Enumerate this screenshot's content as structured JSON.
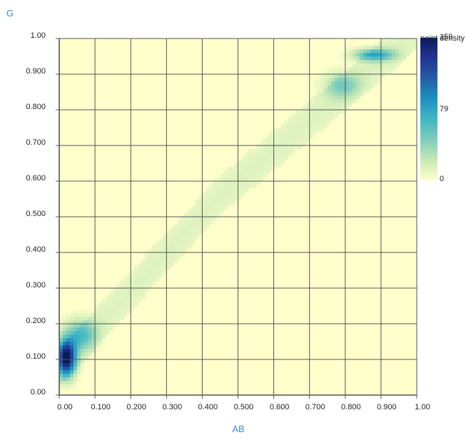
{
  "chart_data": {
    "type": "heatmap",
    "title": "",
    "xlabel": "AB",
    "ylabel": "G",
    "xlim": [
      0,
      1
    ],
    "ylim": [
      0,
      1
    ],
    "grid": true,
    "x_ticks": [
      "0.00",
      "0.100",
      "0.200",
      "0.300",
      "0.400",
      "0.500",
      "0.600",
      "0.700",
      "0.800",
      "0.900",
      "1.00"
    ],
    "y_ticks": [
      "0.00",
      "0.100",
      "0.200",
      "0.300",
      "0.400",
      "0.500",
      "0.600",
      "0.700",
      "0.800",
      "0.900",
      "1.00"
    ],
    "colorbar": {
      "title": "point density",
      "min": 0,
      "mid": 79,
      "max": 159,
      "min_label": "0",
      "mid_label": "79",
      "max_label": "159",
      "colors": [
        "#ffffcc",
        "#c7e9b4",
        "#7fcdbb",
        "#41b6c4",
        "#1d91c0",
        "#225ea8",
        "#253494",
        "#081d58"
      ],
      "placement": "right"
    },
    "bins": 100,
    "background_density": 0,
    "band": {
      "path": [
        [
          0.03,
          0.11
        ],
        [
          0.45,
          0.56
        ],
        [
          0.95,
          0.98
        ]
      ],
      "half_width_y": 0.055,
      "base_density": 14
    },
    "hotspots": [
      {
        "x": 0.02,
        "y": 0.105,
        "peak": 159,
        "sx": 0.018,
        "sy": 0.035
      },
      {
        "x": 0.06,
        "y": 0.17,
        "peak": 55,
        "sx": 0.03,
        "sy": 0.03
      },
      {
        "x": 0.88,
        "y": 0.955,
        "peak": 70,
        "sx": 0.04,
        "sy": 0.012
      },
      {
        "x": 0.79,
        "y": 0.87,
        "peak": 40,
        "sx": 0.035,
        "sy": 0.025
      }
    ]
  }
}
